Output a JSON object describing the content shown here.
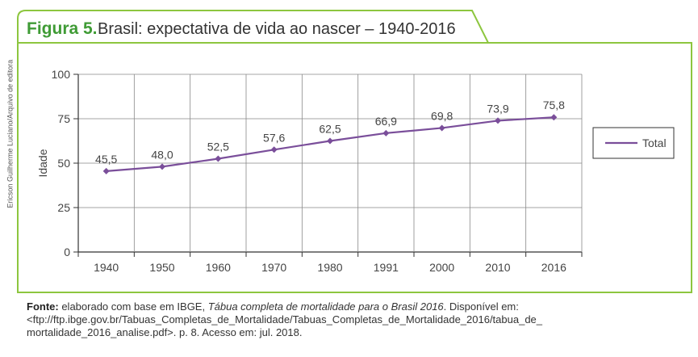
{
  "figure": {
    "label": "Figura 5.",
    "title": "Brasil: expectativa de vida ao nascer – 1940-2016"
  },
  "credit": "Ericson Guilherme Luciano/Arquivo de editora",
  "colors": {
    "accent": "#8dc63f",
    "line": "#7a4e9a",
    "title_green": "#3f9b35"
  },
  "chart_data": {
    "type": "line",
    "title": "Brasil: expectativa de vida ao nascer – 1940-2016",
    "xlabel": "",
    "ylabel": "Idade",
    "categories": [
      "1940",
      "1950",
      "1960",
      "1970",
      "1980",
      "1991",
      "2000",
      "2010",
      "2016"
    ],
    "series": [
      {
        "name": "Total",
        "values": [
          45.5,
          48.0,
          52.5,
          57.6,
          62.5,
          66.9,
          69.8,
          73.9,
          75.8
        ]
      }
    ],
    "data_labels": [
      "45,5",
      "48,0",
      "52,5",
      "57,6",
      "62,5",
      "66,9",
      "69,8",
      "73,9",
      "75,8"
    ],
    "yticks": [
      "0",
      "25",
      "50",
      "75",
      "100"
    ],
    "ylim": [
      0,
      100
    ],
    "grid": true,
    "legend": "right"
  },
  "source": {
    "label": "Fonte:",
    "text1": " elaborado com base em IBGE, ",
    "title": "Tábua completa de mortalidade para o Brasil 2016",
    "text2": ". Disponível em: <ftp://ftp.ibge.gov.br/Tabuas_Completas_de_Mortalidade/Tabuas_Completas_de_Mortalidade_2016/tabua_de_ mortalidade_2016_analise.pdf>. p. 8. Acesso em: jul. 2018."
  }
}
